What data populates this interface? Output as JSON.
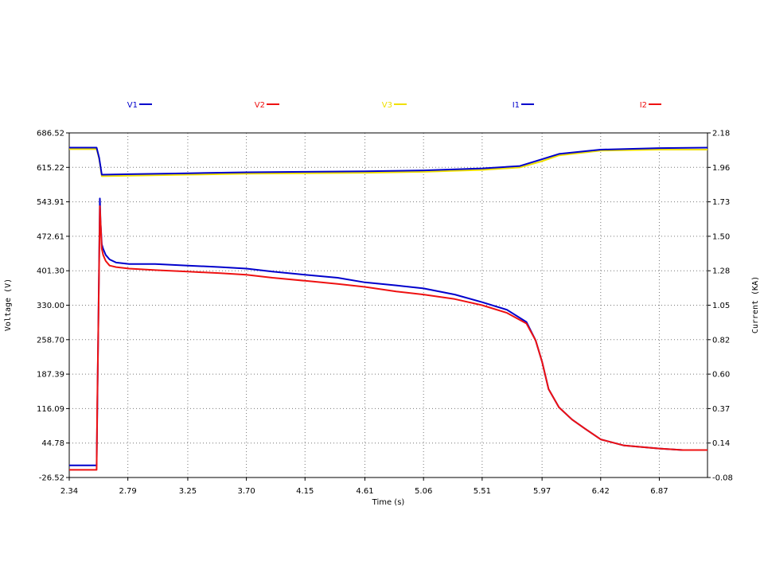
{
  "chart_data": {
    "type": "line",
    "xlabel": "Time (s)",
    "ylabel": "Voltage (V)",
    "y2label": "Current (KA)",
    "xlim": [
      2.34,
      7.24
    ],
    "ylim": [
      -26.52,
      686.52
    ],
    "y2lim": [
      -0.08,
      2.18
    ],
    "x_ticks": [
      "2.34",
      "2.79",
      "3.25",
      "3.70",
      "4.15",
      "4.61",
      "5.06",
      "5.51",
      "5.97",
      "6.42",
      "6.87"
    ],
    "y_ticks": [
      "686.52",
      "615.22",
      "543.91",
      "472.61",
      "401.30",
      "330.00",
      "258.70",
      "187.39",
      "116.09",
      "44.78",
      "-26.52"
    ],
    "y2_ticks": [
      "2.18",
      "1.96",
      "1.73",
      "1.50",
      "1.28",
      "1.05",
      "0.82",
      "0.60",
      "0.37",
      "0.14",
      "-0.08"
    ],
    "grid": true,
    "legend_position": "top",
    "legend": [
      {
        "name": "V1",
        "color": "#0000cc"
      },
      {
        "name": "V2",
        "color": "#ee1111"
      },
      {
        "name": "V3",
        "color": "#f0e000"
      },
      {
        "name": "I1",
        "color": "#0000cc"
      },
      {
        "name": "I2",
        "color": "#ee1111"
      }
    ],
    "series": [
      {
        "name": "V3",
        "axis": "left",
        "color": "#f0e000",
        "x": [
          2.34,
          2.55,
          2.57,
          2.59,
          2.8,
          3.25,
          3.7,
          4.15,
          4.61,
          5.06,
          5.51,
          5.8,
          5.97,
          6.1,
          6.42,
          6.87,
          7.24
        ],
        "y": [
          653,
          653,
          633,
          597,
          598,
          600,
          602,
          603,
          604,
          606,
          610,
          615,
          628,
          640,
          650,
          652,
          652
        ]
      },
      {
        "name": "V1",
        "axis": "left",
        "color": "#0000cc",
        "x": [
          2.34,
          2.55,
          2.57,
          2.59,
          2.8,
          3.25,
          3.7,
          4.15,
          4.61,
          5.06,
          5.51,
          5.8,
          5.97,
          6.1,
          6.42,
          6.87,
          7.24
        ],
        "y": [
          656,
          656,
          635,
          600,
          601,
          603,
          605,
          606,
          607,
          609,
          613,
          618,
          632,
          643,
          652,
          655,
          656
        ]
      },
      {
        "name": "I1",
        "axis": "right",
        "color": "#0000cc",
        "x": [
          2.34,
          2.55,
          2.575,
          2.58,
          2.59,
          2.6,
          2.62,
          2.65,
          2.7,
          2.8,
          3.0,
          3.25,
          3.5,
          3.7,
          3.9,
          4.15,
          4.4,
          4.61,
          4.85,
          5.06,
          5.3,
          5.51,
          5.7,
          5.85,
          5.92,
          5.97,
          6.02,
          6.1,
          6.2,
          6.3,
          6.42,
          6.6,
          6.87,
          7.05,
          7.24
        ],
        "y": [
          0.0,
          0.0,
          1.75,
          1.6,
          1.45,
          1.42,
          1.38,
          1.35,
          1.33,
          1.32,
          1.32,
          1.31,
          1.3,
          1.29,
          1.27,
          1.25,
          1.23,
          1.2,
          1.18,
          1.16,
          1.12,
          1.07,
          1.02,
          0.94,
          0.82,
          0.68,
          0.5,
          0.38,
          0.3,
          0.24,
          0.17,
          0.13,
          0.11,
          0.1,
          0.1
        ]
      },
      {
        "name": "I2",
        "axis": "right",
        "color": "#ee1111",
        "x": [
          2.34,
          2.55,
          2.555,
          2.565,
          2.575,
          2.58,
          2.59,
          2.6,
          2.62,
          2.65,
          2.7,
          2.8,
          3.0,
          3.25,
          3.5,
          3.7,
          3.9,
          4.15,
          4.4,
          4.61,
          4.85,
          5.06,
          5.3,
          5.51,
          5.7,
          5.85,
          5.92,
          5.97,
          6.02,
          6.1,
          6.2,
          6.3,
          6.42,
          6.6,
          6.87,
          7.05,
          7.24
        ],
        "y": [
          -0.03,
          -0.03,
          0.4,
          1.0,
          1.7,
          1.6,
          1.42,
          1.38,
          1.34,
          1.31,
          1.3,
          1.29,
          1.28,
          1.27,
          1.26,
          1.25,
          1.23,
          1.21,
          1.19,
          1.17,
          1.14,
          1.12,
          1.09,
          1.05,
          1.0,
          0.93,
          0.82,
          0.68,
          0.5,
          0.38,
          0.3,
          0.24,
          0.17,
          0.13,
          0.11,
          0.1,
          0.1
        ]
      }
    ]
  }
}
